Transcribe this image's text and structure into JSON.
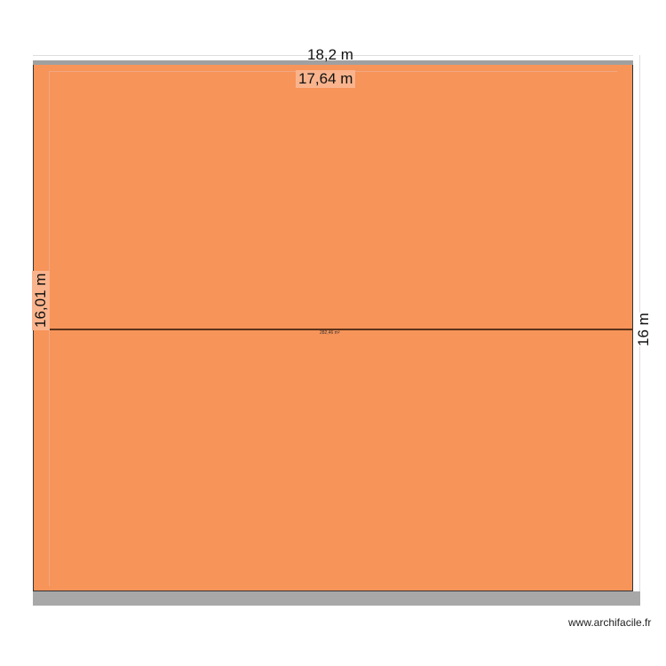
{
  "plan": {
    "width_outer": "18,2 m",
    "width_inner": "17,64 m",
    "height_left": "16,01 m",
    "height_right": "16 m",
    "area": "282,46 m²",
    "room_color": "#f79459"
  },
  "watermark": "www.archifacile.fr"
}
